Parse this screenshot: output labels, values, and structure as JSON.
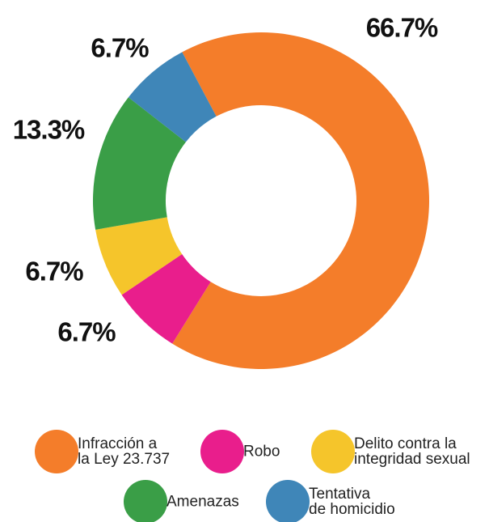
{
  "chart_data": {
    "type": "donut",
    "categories": [
      "Infracción a\nla Ley 23.737",
      "Robo",
      "Delito contra la\nintegridad sexual",
      "Amenazas",
      "Tentativa\nde homicidio"
    ],
    "values": [
      66.7,
      6.7,
      6.7,
      13.3,
      6.7
    ],
    "value_labels": [
      "66.7%",
      "6.7%",
      "6.7%",
      "13.3%",
      "6.7%"
    ],
    "colors": [
      "#f47d2a",
      "#e91e8c",
      "#f5c52b",
      "#3a9e47",
      "#3f86b8"
    ]
  }
}
